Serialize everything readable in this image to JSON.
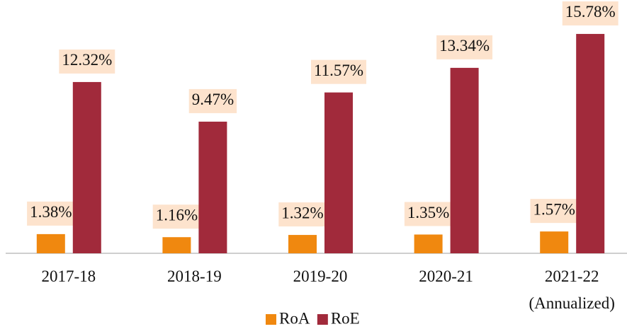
{
  "chart_data": {
    "type": "bar",
    "categories": [
      "2017-18",
      "2018-19",
      "2019-20",
      "2020-21",
      "2021-22\n(Annualized)"
    ],
    "series": [
      {
        "name": "RoA",
        "color": "#f0880f",
        "values": [
          1.38,
          1.16,
          1.32,
          1.35,
          1.57
        ],
        "value_labels": [
          "1.38%",
          "1.16%",
          "1.32%",
          "1.35%",
          "1.57%"
        ]
      },
      {
        "name": "RoE",
        "color": "#a12a3b",
        "values": [
          12.32,
          9.47,
          11.57,
          13.34,
          15.78
        ],
        "value_labels": [
          "12.32%",
          "9.47%",
          "11.57%",
          "13.34%",
          "15.78%"
        ]
      }
    ],
    "label_background": "#fde3cd"
  }
}
